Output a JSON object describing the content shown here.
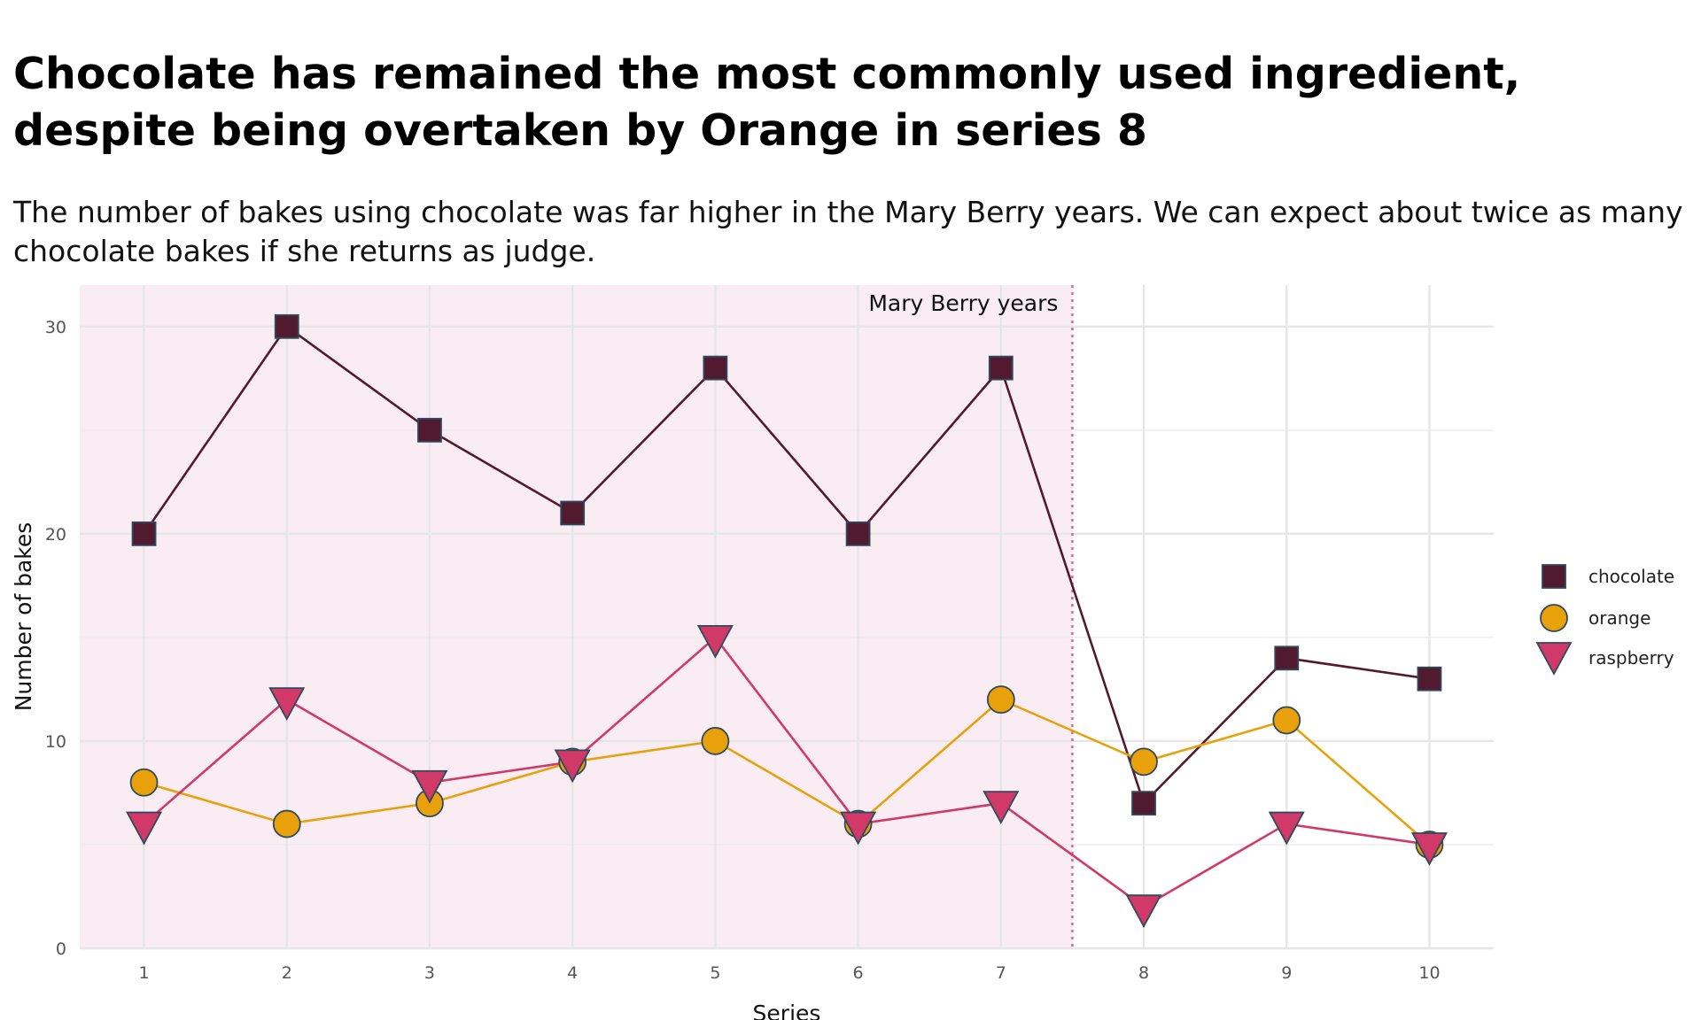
{
  "title": "Chocolate has remained the most commonly used ingredient, despite being overtaken by Orange in series 8",
  "subtitle": "The number of bakes using chocolate was far higher in the Mary Berry years. We can expect about twice as many chocolate bakes if she returns as judge.",
  "chart_data": {
    "type": "line",
    "title": "Chocolate has remained the most commonly used ingredient, despite being overtaken by Orange in series 8",
    "xlabel": "Series",
    "ylabel": "Number of bakes",
    "x": [
      1,
      2,
      3,
      4,
      5,
      6,
      7,
      8,
      9,
      10
    ],
    "xlim": [
      0.55,
      10.45
    ],
    "ylim": [
      0,
      32
    ],
    "yticks": [
      0,
      10,
      20,
      30
    ],
    "grid": true,
    "legend_position": "right",
    "annotation": {
      "label": "Mary Berry years",
      "shaded_x_range": [
        0.55,
        7.5
      ],
      "line_x": 7.5,
      "shade_color": "#f9ecf3",
      "line_color": "#d9668f"
    },
    "series": [
      {
        "name": "chocolate",
        "marker": "square",
        "color": "#521a2e",
        "values": [
          20,
          30,
          25,
          21,
          28,
          20,
          28,
          7,
          14,
          13
        ]
      },
      {
        "name": "orange",
        "marker": "circle",
        "color": "#e8a10a",
        "values": [
          8,
          6,
          7,
          9,
          10,
          6,
          12,
          9,
          11,
          5
        ]
      },
      {
        "name": "raspberry",
        "marker": "triangle-down",
        "color": "#d13a68",
        "values": [
          6,
          12,
          8,
          9,
          15,
          6,
          7,
          2,
          6,
          5
        ]
      }
    ]
  }
}
